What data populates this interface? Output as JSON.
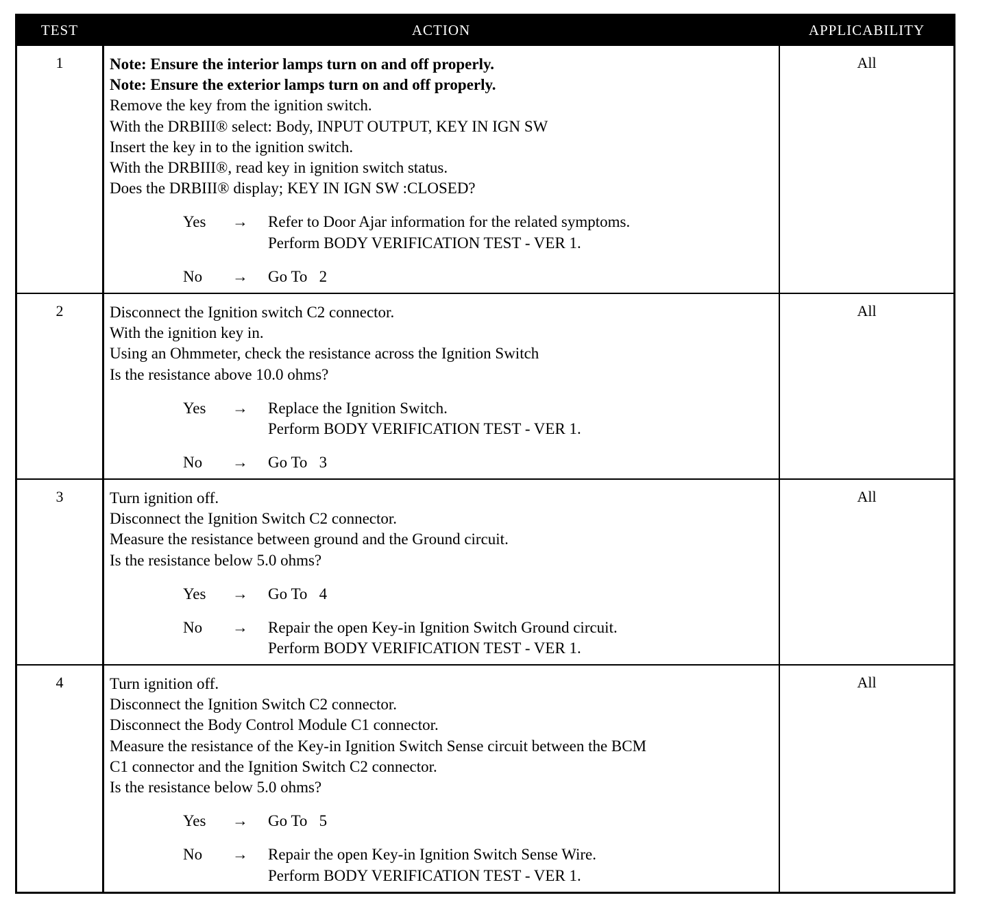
{
  "header": {
    "test": "TEST",
    "action": "ACTION",
    "applicability": "APPLICABILITY"
  },
  "arrow": "→",
  "rows": [
    {
      "test": "1",
      "applicability": "All",
      "bold_lines": [
        "Note: Ensure the interior lamps turn on and off properly.",
        "Note: Ensure the exterior lamps turn on and off properly."
      ],
      "lines": [
        "Remove the key from the ignition switch.",
        "With the DRBIII® select: Body, INPUT OUTPUT, KEY IN IGN SW",
        "Insert the key in to the ignition switch.",
        "With the DRBIII®, read key in ignition switch status.",
        "Does the DRBIII® display; KEY IN IGN SW :CLOSED?"
      ],
      "outcomes": [
        {
          "label": "Yes",
          "lines": [
            "Refer to Door Ajar information for the related symptoms.",
            "Perform BODY VERIFICATION TEST - VER 1."
          ]
        },
        {
          "label": "No",
          "lines": [
            "Go To   2"
          ]
        }
      ]
    },
    {
      "test": "2",
      "applicability": "All",
      "bold_lines": [],
      "lines": [
        "Disconnect the Ignition switch C2 connector.",
        "With the ignition key in.",
        "Using an Ohmmeter, check the resistance across the Ignition Switch",
        "Is the resistance above 10.0 ohms?"
      ],
      "outcomes": [
        {
          "label": "Yes",
          "lines": [
            "Replace the Ignition Switch.",
            "Perform BODY VERIFICATION TEST - VER 1."
          ]
        },
        {
          "label": "No",
          "lines": [
            "Go To   3"
          ]
        }
      ]
    },
    {
      "test": "3",
      "applicability": "All",
      "bold_lines": [],
      "lines": [
        "Turn ignition off.",
        "Disconnect the Ignition Switch C2 connector.",
        "Measure the resistance between ground and the Ground circuit.",
        "Is the resistance below 5.0 ohms?"
      ],
      "outcomes": [
        {
          "label": "Yes",
          "lines": [
            "Go To   4"
          ]
        },
        {
          "label": "No",
          "lines": [
            "Repair the open Key-in Ignition Switch Ground circuit.",
            "Perform BODY VERIFICATION TEST - VER 1."
          ]
        }
      ]
    },
    {
      "test": "4",
      "applicability": "All",
      "bold_lines": [],
      "lines": [
        "Turn ignition off.",
        "Disconnect the Ignition Switch C2 connector.",
        "Disconnect the Body Control Module C1 connector.",
        "Measure the resistance of the Key-in Ignition Switch Sense circuit between the BCM",
        "C1 connector and the Ignition Switch C2 connector.",
        "Is the resistance below 5.0 ohms?"
      ],
      "outcomes": [
        {
          "label": "Yes",
          "lines": [
            "Go To   5"
          ]
        },
        {
          "label": "No",
          "lines": [
            "Repair the open Key-in Ignition Switch Sense Wire.",
            "Perform BODY VERIFICATION TEST - VER 1."
          ]
        }
      ]
    }
  ]
}
